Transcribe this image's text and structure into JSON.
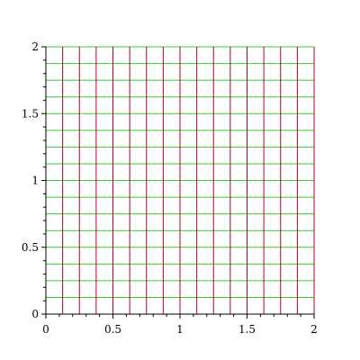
{
  "chart_data": {
    "type": "line",
    "title": "",
    "xlabel": "",
    "ylabel": "",
    "xlim": [
      0,
      2
    ],
    "ylim": [
      0,
      2
    ],
    "x_ticks": [
      0,
      0.5,
      1,
      1.5,
      2
    ],
    "y_ticks": [
      0,
      0.5,
      1,
      1.5,
      2
    ],
    "x_tick_labels": [
      "0",
      "0.5",
      "1",
      "1.5",
      "2"
    ],
    "y_tick_labels": [
      "0",
      "0.5",
      "1",
      "1.5",
      "2"
    ],
    "x_minor_step": 0.1,
    "y_minor_step": 0.1,
    "grid": false,
    "legend": "none",
    "series": [
      {
        "kind": "vertical-lines",
        "color": "#b00020",
        "x": [
          0.125,
          0.25,
          0.375,
          0.5,
          0.625,
          0.75,
          0.875,
          1.0,
          1.125,
          1.25,
          1.375,
          1.5,
          1.625,
          1.75,
          1.875,
          2.0
        ],
        "y_range": [
          0,
          2
        ]
      },
      {
        "kind": "horizontal-lines",
        "color": "#33cc33",
        "y": [
          0.125,
          0.25,
          0.375,
          0.5,
          0.625,
          0.75,
          0.875,
          1.0,
          1.125,
          1.25,
          1.375,
          1.5,
          1.625,
          1.75,
          1.875,
          2.0
        ],
        "x_range": [
          0,
          2
        ]
      }
    ]
  }
}
